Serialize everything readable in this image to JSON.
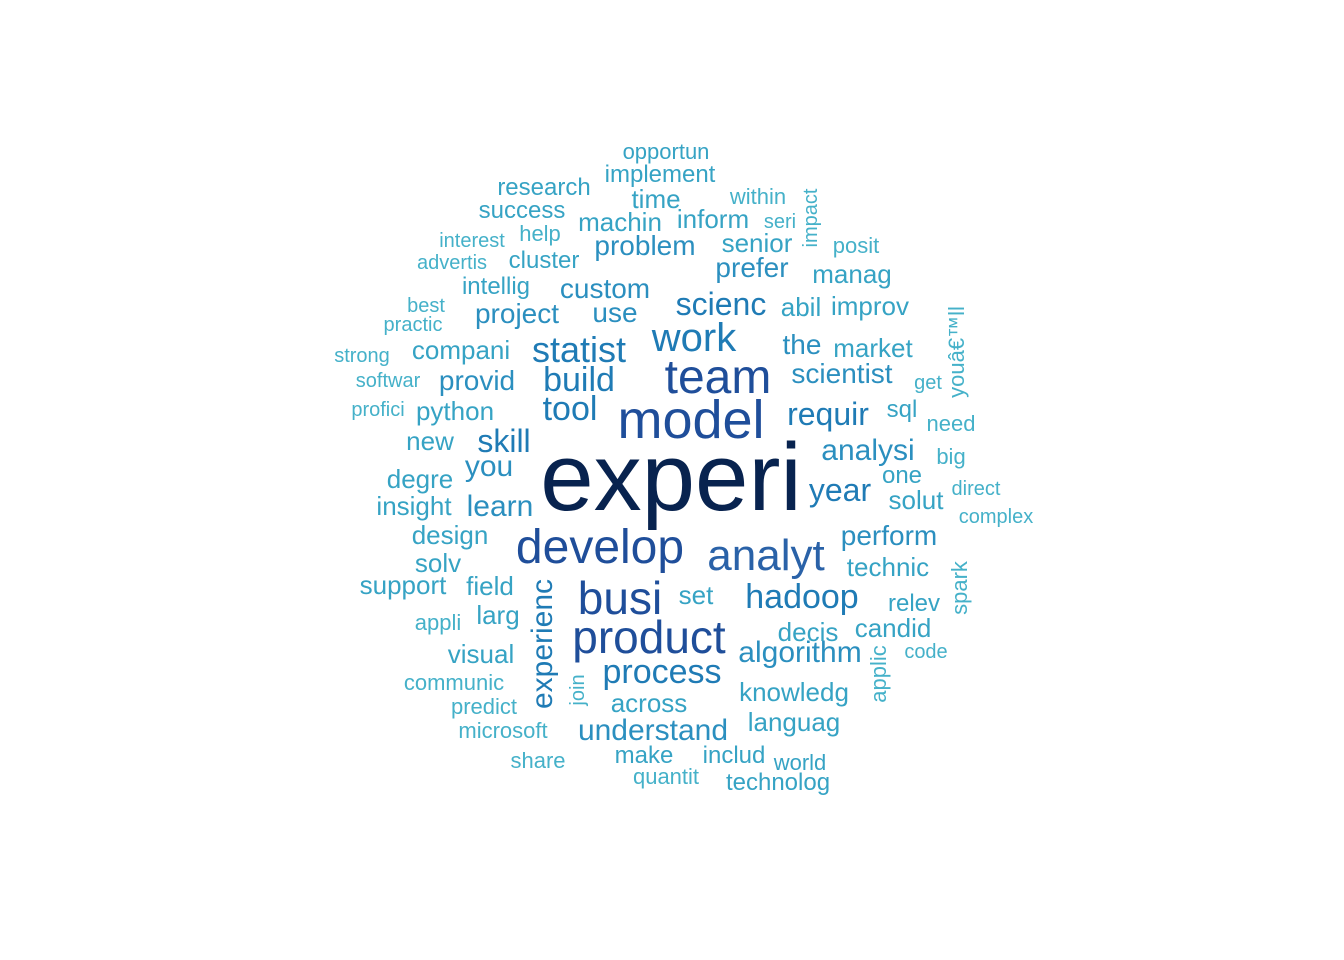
{
  "colors": {
    "tier1": "#08234f",
    "tier2": "#1f4e9a",
    "tier3": "#2a62a8",
    "tier4": "#1f7bb5",
    "tier5": "#2b8fbf",
    "tier6": "#36a3c4",
    "tier7": "#45b1c9"
  },
  "words": [
    {
      "text": "experi",
      "tier": 1
    },
    {
      "text": "model",
      "tier": 2
    },
    {
      "text": "team",
      "tier": 2
    },
    {
      "text": "develop",
      "tier": 2
    },
    {
      "text": "busi",
      "tier": 2
    },
    {
      "text": "product",
      "tier": 2
    },
    {
      "text": "analyt",
      "tier": 3
    },
    {
      "text": "work",
      "tier": 4
    },
    {
      "text": "statist",
      "tier": 4
    },
    {
      "text": "build",
      "tier": 4
    },
    {
      "text": "tool",
      "tier": 4
    },
    {
      "text": "process",
      "tier": 4
    },
    {
      "text": "hadoop",
      "tier": 4
    },
    {
      "text": "scienc",
      "tier": 4
    },
    {
      "text": "requir",
      "tier": 4
    },
    {
      "text": "skill",
      "tier": 4
    },
    {
      "text": "year",
      "tier": 4
    },
    {
      "text": "experienc",
      "tier": 4
    },
    {
      "text": "analysi",
      "tier": 5
    },
    {
      "text": "learn",
      "tier": 5
    },
    {
      "text": "you",
      "tier": 5
    },
    {
      "text": "understand",
      "tier": 5
    },
    {
      "text": "algorithm",
      "tier": 5
    },
    {
      "text": "perform",
      "tier": 5
    },
    {
      "text": "project",
      "tier": 5
    },
    {
      "text": "use",
      "tier": 5
    },
    {
      "text": "custom",
      "tier": 5
    },
    {
      "text": "problem",
      "tier": 5
    },
    {
      "text": "the",
      "tier": 5
    },
    {
      "text": "scientist",
      "tier": 5
    },
    {
      "text": "provid",
      "tier": 5
    },
    {
      "text": "prefer",
      "tier": 5
    },
    {
      "text": "technic",
      "tier": 6
    },
    {
      "text": "field",
      "tier": 6
    },
    {
      "text": "design",
      "tier": 6
    },
    {
      "text": "python",
      "tier": 6
    },
    {
      "text": "compani",
      "tier": 6
    },
    {
      "text": "insight",
      "tier": 6
    },
    {
      "text": "degre",
      "tier": 6
    },
    {
      "text": "new",
      "tier": 6
    },
    {
      "text": "solv",
      "tier": 6
    },
    {
      "text": "support",
      "tier": 6
    },
    {
      "text": "set",
      "tier": 6
    },
    {
      "text": "larg",
      "tier": 6
    },
    {
      "text": "visual",
      "tier": 6
    },
    {
      "text": "across",
      "tier": 6
    },
    {
      "text": "knowledg",
      "tier": 6
    },
    {
      "text": "languag",
      "tier": 6
    },
    {
      "text": "decis",
      "tier": 6
    },
    {
      "text": "candid",
      "tier": 6
    },
    {
      "text": "relev",
      "tier": 6
    },
    {
      "text": "solut",
      "tier": 6
    },
    {
      "text": "one",
      "tier": 6
    },
    {
      "text": "sql",
      "tier": 6
    },
    {
      "text": "market",
      "tier": 6
    },
    {
      "text": "improv",
      "tier": 6
    },
    {
      "text": "abil",
      "tier": 6
    },
    {
      "text": "manag",
      "tier": 6
    },
    {
      "text": "senior",
      "tier": 6
    },
    {
      "text": "inform",
      "tier": 6
    },
    {
      "text": "machin",
      "tier": 6
    },
    {
      "text": "time",
      "tier": 6
    },
    {
      "text": "implement",
      "tier": 6
    },
    {
      "text": "opportun",
      "tier": 6
    },
    {
      "text": "research",
      "tier": 6
    },
    {
      "text": "success",
      "tier": 6
    },
    {
      "text": "cluster",
      "tier": 6
    },
    {
      "text": "intellig",
      "tier": 6
    },
    {
      "text": "make",
      "tier": 6
    },
    {
      "text": "includ",
      "tier": 6
    },
    {
      "text": "world",
      "tier": 6
    },
    {
      "text": "technolog",
      "tier": 6
    },
    {
      "text": "quantit",
      "tier": 7
    },
    {
      "text": "share",
      "tier": 7
    },
    {
      "text": "microsoft",
      "tier": 7
    },
    {
      "text": "predict",
      "tier": 7
    },
    {
      "text": "communic",
      "tier": 7
    },
    {
      "text": "appli",
      "tier": 7
    },
    {
      "text": "join",
      "tier": 7
    },
    {
      "text": "code",
      "tier": 7
    },
    {
      "text": "applic",
      "tier": 7
    },
    {
      "text": "spark",
      "tier": 7
    },
    {
      "text": "complex",
      "tier": 7
    },
    {
      "text": "direct",
      "tier": 7
    },
    {
      "text": "big",
      "tier": 7
    },
    {
      "text": "need",
      "tier": 7
    },
    {
      "text": "get",
      "tier": 7
    },
    {
      "text": "youâ€™ll",
      "tier": 7
    },
    {
      "text": "posit",
      "tier": 7
    },
    {
      "text": "impact",
      "tier": 7
    },
    {
      "text": "seri",
      "tier": 7
    },
    {
      "text": "within",
      "tier": 7
    },
    {
      "text": "help",
      "tier": 7
    },
    {
      "text": "interest",
      "tier": 7
    },
    {
      "text": "advertis",
      "tier": 7
    },
    {
      "text": "best",
      "tier": 7
    },
    {
      "text": "practic",
      "tier": 7
    },
    {
      "text": "strong",
      "tier": 7
    },
    {
      "text": "softwar",
      "tier": 7
    },
    {
      "text": "profici",
      "tier": 7
    }
  ]
}
